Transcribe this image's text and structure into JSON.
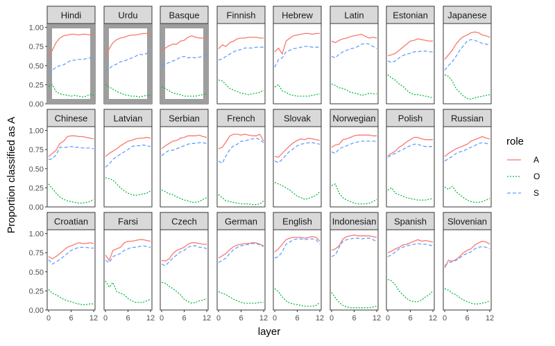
{
  "chart_data": {
    "type": "line",
    "facet_layout": "3 rows x 8 columns",
    "ylabel": "Proportion classified as A",
    "xlabel": "layer",
    "x": [
      0,
      1,
      2,
      3,
      4,
      5,
      6,
      7,
      8,
      9,
      10,
      11,
      12
    ],
    "x_ticks": [
      0,
      6,
      12
    ],
    "y_ticks": [
      0.0,
      0.25,
      0.5,
      0.75,
      1.0
    ],
    "y_tick_labels": [
      "0.00",
      "0.25",
      "0.50",
      "0.75",
      "1.00"
    ],
    "x_tick_labels": [
      "0",
      "6",
      "12"
    ],
    "ylim": [
      0,
      1.05
    ],
    "xlim": [
      0,
      12
    ],
    "legend": {
      "title": "role",
      "placement": "right",
      "entries": [
        {
          "name": "A",
          "color": "#F8766D",
          "linetype": "solid"
        },
        {
          "name": "O",
          "color": "#00BA38",
          "linetype": "dotted"
        },
        {
          "name": "S",
          "color": "#619CFF",
          "linetype": "dashed"
        }
      ]
    },
    "highlighted_panels": [
      "Hindi",
      "Urdu",
      "Basque"
    ],
    "panels": [
      {
        "label": "Hindi",
        "A": [
          0.62,
          0.7,
          0.8,
          0.86,
          0.89,
          0.9,
          0.91,
          0.91,
          0.9,
          0.91,
          0.91,
          0.9,
          0.9
        ],
        "S": [
          0.4,
          0.44,
          0.48,
          0.5,
          0.51,
          0.54,
          0.57,
          0.57,
          0.58,
          0.58,
          0.59,
          0.6,
          0.6
        ],
        "O": [
          0.23,
          0.25,
          0.16,
          0.13,
          0.12,
          0.11,
          0.1,
          0.11,
          0.1,
          0.09,
          0.1,
          0.12,
          0.11
        ]
      },
      {
        "label": "Urdu",
        "A": [
          0.62,
          0.72,
          0.8,
          0.84,
          0.86,
          0.87,
          0.89,
          0.9,
          0.9,
          0.91,
          0.92,
          0.92,
          0.91
        ],
        "S": [
          0.42,
          0.46,
          0.5,
          0.52,
          0.55,
          0.56,
          0.58,
          0.6,
          0.62,
          0.65,
          0.64,
          0.66,
          0.65
        ],
        "O": [
          0.25,
          0.22,
          0.19,
          0.16,
          0.14,
          0.12,
          0.11,
          0.1,
          0.1,
          0.09,
          0.1,
          0.11,
          0.11
        ]
      },
      {
        "label": "Basque",
        "A": [
          0.7,
          0.73,
          0.76,
          0.78,
          0.78,
          0.82,
          0.83,
          0.87,
          0.89,
          0.87,
          0.86,
          0.86,
          0.87
        ],
        "S": [
          0.5,
          0.52,
          0.54,
          0.56,
          0.58,
          0.61,
          0.62,
          0.6,
          0.61,
          0.6,
          0.61,
          0.62,
          0.64
        ],
        "O": [
          0.22,
          0.2,
          0.17,
          0.14,
          0.13,
          0.12,
          0.1,
          0.1,
          0.1,
          0.1,
          0.11,
          0.12,
          0.13
        ]
      },
      {
        "label": "Finnish",
        "A": [
          0.72,
          0.77,
          0.75,
          0.8,
          0.82,
          0.85,
          0.86,
          0.86,
          0.87,
          0.87,
          0.87,
          0.86,
          0.86
        ],
        "S": [
          0.57,
          0.59,
          0.62,
          0.65,
          0.68,
          0.7,
          0.71,
          0.73,
          0.73,
          0.73,
          0.74,
          0.74,
          0.74
        ],
        "O": [
          0.31,
          0.3,
          0.25,
          0.2,
          0.18,
          0.16,
          0.14,
          0.13,
          0.12,
          0.13,
          0.14,
          0.15,
          0.18
        ]
      },
      {
        "label": "Hebrew",
        "A": [
          0.68,
          0.73,
          0.65,
          0.82,
          0.86,
          0.89,
          0.9,
          0.91,
          0.92,
          0.92,
          0.91,
          0.92,
          0.92
        ],
        "S": [
          0.48,
          0.58,
          0.6,
          0.68,
          0.7,
          0.72,
          0.73,
          0.74,
          0.75,
          0.75,
          0.74,
          0.74,
          0.74
        ],
        "O": [
          0.22,
          0.25,
          0.17,
          0.15,
          0.12,
          0.11,
          0.1,
          0.1,
          0.1,
          0.1,
          0.11,
          0.12,
          0.13
        ]
      },
      {
        "label": "Latin",
        "A": [
          0.82,
          0.8,
          0.83,
          0.85,
          0.86,
          0.88,
          0.89,
          0.9,
          0.91,
          0.88,
          0.86,
          0.87,
          0.86
        ],
        "S": [
          0.62,
          0.6,
          0.65,
          0.68,
          0.7,
          0.72,
          0.73,
          0.75,
          0.78,
          0.79,
          0.78,
          0.75,
          0.72
        ],
        "O": [
          0.26,
          0.24,
          0.21,
          0.2,
          0.18,
          0.15,
          0.14,
          0.13,
          0.11,
          0.12,
          0.14,
          0.13,
          0.13
        ]
      },
      {
        "label": "Estonian",
        "A": [
          0.63,
          0.64,
          0.66,
          0.7,
          0.74,
          0.78,
          0.82,
          0.83,
          0.85,
          0.84,
          0.83,
          0.82,
          0.82
        ],
        "S": [
          0.56,
          0.54,
          0.56,
          0.6,
          0.63,
          0.65,
          0.66,
          0.68,
          0.68,
          0.69,
          0.69,
          0.68,
          0.68
        ],
        "O": [
          0.38,
          0.34,
          0.31,
          0.26,
          0.23,
          0.18,
          0.14,
          0.12,
          0.12,
          0.11,
          0.1,
          0.09,
          0.08
        ]
      },
      {
        "label": "Japanese",
        "A": [
          0.58,
          0.64,
          0.7,
          0.78,
          0.84,
          0.88,
          0.9,
          0.93,
          0.94,
          0.93,
          0.9,
          0.89,
          0.87
        ],
        "S": [
          0.44,
          0.5,
          0.55,
          0.62,
          0.7,
          0.76,
          0.82,
          0.84,
          0.83,
          0.81,
          0.79,
          0.78,
          0.77
        ],
        "O": [
          0.38,
          0.36,
          0.3,
          0.2,
          0.15,
          0.1,
          0.07,
          0.06,
          0.08,
          0.09,
          0.1,
          0.11,
          0.12
        ]
      },
      {
        "label": "Chinese",
        "A": [
          0.66,
          0.7,
          0.74,
          0.83,
          0.86,
          0.92,
          0.93,
          0.93,
          0.92,
          0.92,
          0.91,
          0.9,
          0.89
        ],
        "S": [
          0.62,
          0.63,
          0.68,
          0.78,
          0.78,
          0.78,
          0.79,
          0.78,
          0.78,
          0.77,
          0.77,
          0.77,
          0.76
        ],
        "O": [
          0.3,
          0.24,
          0.18,
          0.13,
          0.1,
          0.08,
          0.07,
          0.06,
          0.05,
          0.05,
          0.06,
          0.07,
          0.1
        ]
      },
      {
        "label": "Latvian",
        "A": [
          0.66,
          0.7,
          0.73,
          0.76,
          0.8,
          0.83,
          0.86,
          0.87,
          0.89,
          0.9,
          0.9,
          0.91,
          0.9
        ],
        "S": [
          0.52,
          0.56,
          0.62,
          0.66,
          0.69,
          0.72,
          0.75,
          0.79,
          0.8,
          0.8,
          0.81,
          0.8,
          0.79
        ],
        "O": [
          0.38,
          0.37,
          0.35,
          0.3,
          0.25,
          0.21,
          0.18,
          0.16,
          0.15,
          0.16,
          0.17,
          0.18,
          0.21
        ]
      },
      {
        "label": "Serbian",
        "A": [
          0.76,
          0.8,
          0.83,
          0.86,
          0.87,
          0.9,
          0.91,
          0.93,
          0.93,
          0.93,
          0.94,
          0.92,
          0.91
        ],
        "S": [
          0.67,
          0.71,
          0.74,
          0.74,
          0.76,
          0.78,
          0.8,
          0.82,
          0.83,
          0.83,
          0.84,
          0.84,
          0.83
        ],
        "O": [
          0.22,
          0.2,
          0.17,
          0.16,
          0.13,
          0.11,
          0.09,
          0.08,
          0.06,
          0.06,
          0.07,
          0.1,
          0.12
        ]
      },
      {
        "label": "French",
        "A": [
          0.76,
          0.78,
          0.85,
          0.93,
          0.95,
          0.95,
          0.94,
          0.95,
          0.94,
          0.93,
          0.93,
          0.95,
          0.86
        ],
        "S": [
          0.6,
          0.57,
          0.67,
          0.75,
          0.8,
          0.82,
          0.86,
          0.86,
          0.88,
          0.89,
          0.9,
          0.88,
          0.84
        ],
        "O": [
          0.16,
          0.12,
          0.08,
          0.07,
          0.06,
          0.05,
          0.04,
          0.04,
          0.04,
          0.03,
          0.03,
          0.04,
          0.08
        ]
      },
      {
        "label": "Slovak",
        "A": [
          0.66,
          0.65,
          0.7,
          0.75,
          0.8,
          0.84,
          0.87,
          0.89,
          0.88,
          0.9,
          0.89,
          0.88,
          0.87
        ],
        "S": [
          0.6,
          0.58,
          0.62,
          0.68,
          0.73,
          0.76,
          0.8,
          0.82,
          0.83,
          0.84,
          0.84,
          0.83,
          0.82
        ],
        "O": [
          0.32,
          0.3,
          0.28,
          0.25,
          0.22,
          0.18,
          0.14,
          0.12,
          0.1,
          0.11,
          0.13,
          0.15,
          0.2
        ]
      },
      {
        "label": "Norwegian",
        "A": [
          0.78,
          0.81,
          0.82,
          0.88,
          0.89,
          0.91,
          0.93,
          0.94,
          0.94,
          0.94,
          0.94,
          0.93,
          0.93
        ],
        "S": [
          0.72,
          0.7,
          0.76,
          0.78,
          0.8,
          0.82,
          0.84,
          0.85,
          0.86,
          0.86,
          0.86,
          0.86,
          0.86
        ],
        "O": [
          0.28,
          0.3,
          0.18,
          0.12,
          0.09,
          0.07,
          0.05,
          0.04,
          0.04,
          0.04,
          0.05,
          0.07,
          0.1
        ]
      },
      {
        "label": "Polish",
        "A": [
          0.67,
          0.7,
          0.73,
          0.78,
          0.81,
          0.85,
          0.88,
          0.91,
          0.91,
          0.89,
          0.88,
          0.88,
          0.88
        ],
        "S": [
          0.65,
          0.68,
          0.7,
          0.73,
          0.75,
          0.78,
          0.8,
          0.82,
          0.82,
          0.8,
          0.79,
          0.79,
          0.79
        ],
        "O": [
          0.22,
          0.25,
          0.18,
          0.16,
          0.14,
          0.12,
          0.11,
          0.1,
          0.09,
          0.09,
          0.09,
          0.1,
          0.11
        ]
      },
      {
        "label": "Russian",
        "A": [
          0.66,
          0.7,
          0.73,
          0.76,
          0.78,
          0.8,
          0.82,
          0.86,
          0.88,
          0.9,
          0.92,
          0.9,
          0.89
        ],
        "S": [
          0.6,
          0.63,
          0.66,
          0.7,
          0.72,
          0.73,
          0.76,
          0.78,
          0.8,
          0.83,
          0.84,
          0.83,
          0.82
        ],
        "O": [
          0.26,
          0.23,
          0.27,
          0.2,
          0.16,
          0.12,
          0.09,
          0.07,
          0.06,
          0.06,
          0.07,
          0.09,
          0.11
        ]
      },
      {
        "label": "Croatian",
        "A": [
          0.7,
          0.67,
          0.7,
          0.74,
          0.78,
          0.82,
          0.84,
          0.86,
          0.88,
          0.87,
          0.87,
          0.88,
          0.87
        ],
        "S": [
          0.66,
          0.6,
          0.63,
          0.66,
          0.7,
          0.74,
          0.78,
          0.8,
          0.82,
          0.82,
          0.82,
          0.81,
          0.81
        ],
        "O": [
          0.27,
          0.22,
          0.2,
          0.17,
          0.14,
          0.12,
          0.11,
          0.09,
          0.08,
          0.07,
          0.07,
          0.08,
          0.08
        ]
      },
      {
        "label": "Farsi",
        "A": [
          0.72,
          0.65,
          0.78,
          0.8,
          0.82,
          0.88,
          0.9,
          0.9,
          0.91,
          0.92,
          0.92,
          0.91,
          0.9
        ],
        "S": [
          0.65,
          0.62,
          0.7,
          0.72,
          0.74,
          0.78,
          0.8,
          0.82,
          0.82,
          0.83,
          0.84,
          0.83,
          0.82
        ],
        "O": [
          0.38,
          0.3,
          0.36,
          0.24,
          0.22,
          0.2,
          0.15,
          0.12,
          0.1,
          0.1,
          0.1,
          0.12,
          0.14
        ]
      },
      {
        "label": "Czech",
        "A": [
          0.65,
          0.64,
          0.67,
          0.74,
          0.78,
          0.8,
          0.82,
          0.86,
          0.88,
          0.88,
          0.87,
          0.86,
          0.86
        ],
        "S": [
          0.6,
          0.58,
          0.63,
          0.68,
          0.72,
          0.76,
          0.78,
          0.82,
          0.84,
          0.84,
          0.82,
          0.82,
          0.8
        ],
        "O": [
          0.36,
          0.35,
          0.31,
          0.28,
          0.24,
          0.2,
          0.14,
          0.11,
          0.09,
          0.1,
          0.12,
          0.13,
          0.15
        ]
      },
      {
        "label": "German",
        "A": [
          0.68,
          0.71,
          0.74,
          0.79,
          0.83,
          0.85,
          0.86,
          0.87,
          0.87,
          0.88,
          0.88,
          0.86,
          0.84
        ],
        "S": [
          0.62,
          0.65,
          0.68,
          0.74,
          0.79,
          0.82,
          0.84,
          0.85,
          0.86,
          0.87,
          0.87,
          0.85,
          0.83
        ],
        "O": [
          0.24,
          0.22,
          0.2,
          0.17,
          0.14,
          0.12,
          0.1,
          0.09,
          0.09,
          0.09,
          0.09,
          0.1,
          0.1
        ]
      },
      {
        "label": "English",
        "A": [
          0.76,
          0.8,
          0.86,
          0.92,
          0.94,
          0.95,
          0.95,
          0.95,
          0.94,
          0.95,
          0.96,
          0.95,
          0.9
        ],
        "S": [
          0.68,
          0.7,
          0.76,
          0.86,
          0.89,
          0.92,
          0.93,
          0.93,
          0.92,
          0.93,
          0.93,
          0.92,
          0.86
        ],
        "O": [
          0.28,
          0.24,
          0.17,
          0.12,
          0.09,
          0.08,
          0.07,
          0.06,
          0.05,
          0.05,
          0.05,
          0.06,
          0.1
        ]
      },
      {
        "label": "Indonesian",
        "A": [
          0.78,
          0.8,
          0.84,
          0.93,
          0.96,
          0.97,
          0.98,
          0.97,
          0.97,
          0.97,
          0.97,
          0.96,
          0.95
        ],
        "S": [
          0.7,
          0.72,
          0.82,
          0.9,
          0.92,
          0.93,
          0.94,
          0.94,
          0.93,
          0.94,
          0.94,
          0.92,
          0.9
        ],
        "O": [
          0.23,
          0.16,
          0.1,
          0.06,
          0.04,
          0.03,
          0.03,
          0.03,
          0.03,
          0.03,
          0.03,
          0.04,
          0.05
        ]
      },
      {
        "label": "Spanish",
        "A": [
          0.75,
          0.77,
          0.8,
          0.82,
          0.85,
          0.86,
          0.88,
          0.9,
          0.92,
          0.9,
          0.91,
          0.9,
          0.89
        ],
        "S": [
          0.7,
          0.72,
          0.76,
          0.8,
          0.82,
          0.84,
          0.85,
          0.86,
          0.87,
          0.86,
          0.86,
          0.85,
          0.84
        ],
        "O": [
          0.4,
          0.38,
          0.33,
          0.25,
          0.2,
          0.15,
          0.12,
          0.11,
          0.11,
          0.13,
          0.17,
          0.2,
          0.25
        ]
      },
      {
        "label": "Slovenian",
        "A": [
          0.55,
          0.65,
          0.64,
          0.66,
          0.7,
          0.75,
          0.78,
          0.8,
          0.85,
          0.88,
          0.9,
          0.89,
          0.86
        ],
        "S": [
          0.58,
          0.62,
          0.63,
          0.65,
          0.68,
          0.72,
          0.74,
          0.76,
          0.8,
          0.82,
          0.83,
          0.82,
          0.8
        ],
        "O": [
          0.28,
          0.26,
          0.22,
          0.2,
          0.16,
          0.13,
          0.11,
          0.09,
          0.08,
          0.08,
          0.09,
          0.1,
          0.12
        ]
      }
    ]
  }
}
